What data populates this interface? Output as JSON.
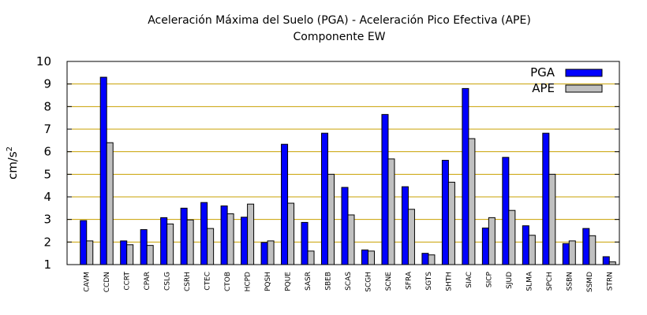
{
  "chart_data": {
    "type": "bar",
    "title": "Aceleración Máxima del Suelo (PGA) -  Aceleración Pico Efectiva (APE)",
    "subtitle": "Componente EW",
    "ylabel": "cm/s",
    "ylabel_sup": "2",
    "xlabel": "",
    "ylim": [
      1,
      10
    ],
    "yticks": [
      1,
      2,
      3,
      4,
      5,
      6,
      7,
      8,
      9,
      10
    ],
    "grid": "horizontal",
    "legend_position": "top-right",
    "categories": [
      "CAVM",
      "CCDN",
      "CCRT",
      "CPAR",
      "CSLG",
      "CSRH",
      "CTEC",
      "CTOB",
      "HCPD",
      "PQSH",
      "PQUE",
      "SASR",
      "SBEB",
      "SCAS",
      "SCGH",
      "SCNE",
      "SFRA",
      "SGTS",
      "SHTH",
      "SIAC",
      "SICP",
      "SJUD",
      "SLMA",
      "SPCH",
      "SSBN",
      "SSMD",
      "STRN"
    ],
    "series": [
      {
        "name": "PGA",
        "color": "#0000ff",
        "values": [
          2.95,
          9.3,
          2.05,
          2.55,
          3.08,
          3.5,
          3.75,
          3.6,
          3.1,
          1.98,
          6.33,
          2.87,
          6.82,
          4.42,
          1.65,
          7.65,
          4.45,
          1.5,
          5.62,
          8.8,
          2.62,
          5.75,
          2.72,
          6.82,
          1.93,
          2.6,
          1.35
        ]
      },
      {
        "name": "APE",
        "color": "#c0c0c0",
        "values": [
          2.05,
          6.4,
          1.88,
          1.85,
          2.8,
          2.98,
          2.6,
          3.25,
          3.68,
          2.05,
          3.72,
          1.6,
          5.0,
          3.2,
          1.6,
          5.68,
          3.45,
          1.43,
          4.65,
          6.58,
          3.08,
          3.4,
          2.3,
          5.0,
          2.05,
          2.28,
          1.12
        ]
      }
    ]
  }
}
